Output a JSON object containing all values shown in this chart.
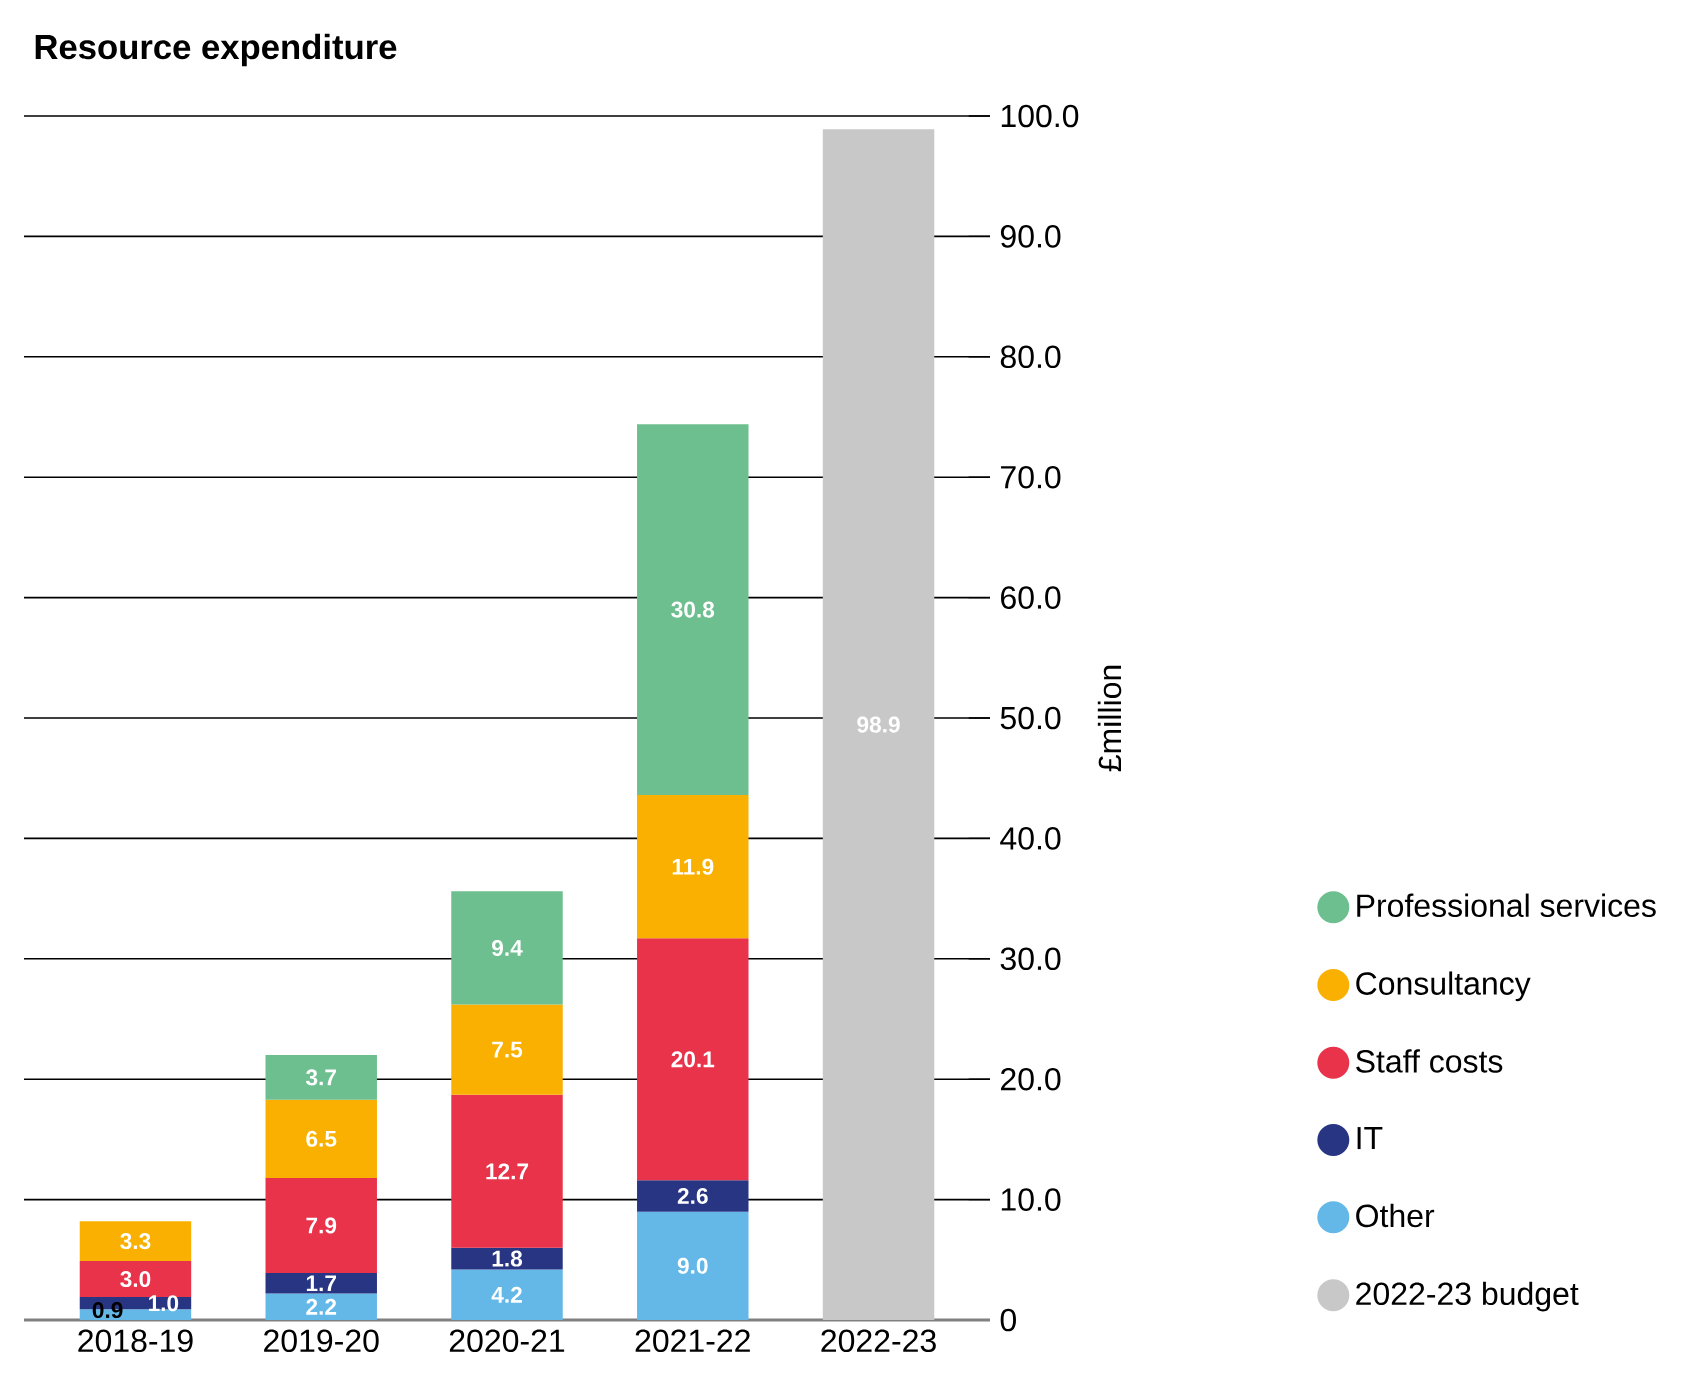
{
  "chart_data": {
    "type": "bar",
    "stacked": true,
    "title": "Resource expenditure",
    "ylabel": "£million",
    "categories": [
      "2018-19",
      "2019-20",
      "2020-21",
      "2021-22",
      "2022-23"
    ],
    "series": [
      {
        "name": "2022-23 budget",
        "color": "#c8c8c8",
        "values": [
          null,
          null,
          null,
          null,
          98.9
        ],
        "value_labels": [
          null,
          null,
          null,
          null,
          "98.9"
        ]
      },
      {
        "name": "Other",
        "color": "#63b8e8",
        "values": [
          0.9,
          2.2,
          4.2,
          9.0,
          null
        ],
        "value_labels": [
          "0.9",
          "2.2",
          "4.2",
          "9.0",
          null
        ]
      },
      {
        "name": "IT",
        "color": "#283583",
        "values": [
          1.0,
          1.7,
          1.8,
          2.6,
          null
        ],
        "value_labels": [
          "1.0",
          "1.7",
          "1.8",
          "2.6",
          null
        ]
      },
      {
        "name": "Staff costs",
        "color": "#e8334a",
        "values": [
          3.0,
          7.9,
          12.7,
          20.1,
          null
        ],
        "value_labels": [
          "3.0",
          "7.9",
          "12.7",
          "20.1",
          null
        ]
      },
      {
        "name": "Consultancy",
        "color": "#f9b000",
        "values": [
          3.3,
          6.5,
          7.5,
          11.9,
          null
        ],
        "value_labels": [
          "3.3",
          "6.5",
          "7.5",
          "11.9",
          null
        ]
      },
      {
        "name": "Professional services",
        "color": "#6dbf8f",
        "values": [
          null,
          3.7,
          9.4,
          30.8,
          null
        ],
        "value_labels": [
          null,
          "3.7",
          "9.4",
          "30.8",
          null
        ]
      }
    ],
    "ylim": [
      0,
      100
    ],
    "yticks": [
      0,
      {
        "value": 10,
        "label": "10.0"
      },
      {
        "value": 20,
        "label": "20.0"
      },
      {
        "value": 30,
        "label": "30.0"
      },
      {
        "value": 40,
        "label": "40.0"
      },
      {
        "value": 50,
        "label": "50.0"
      },
      {
        "value": 60,
        "label": "60.0"
      },
      {
        "value": 70,
        "label": "70.0"
      },
      {
        "value": 80,
        "label": "80.0"
      },
      {
        "value": 90,
        "label": "90.0"
      },
      {
        "value": 100,
        "label": "100.0"
      }
    ],
    "grid": "y",
    "legend": "right"
  }
}
